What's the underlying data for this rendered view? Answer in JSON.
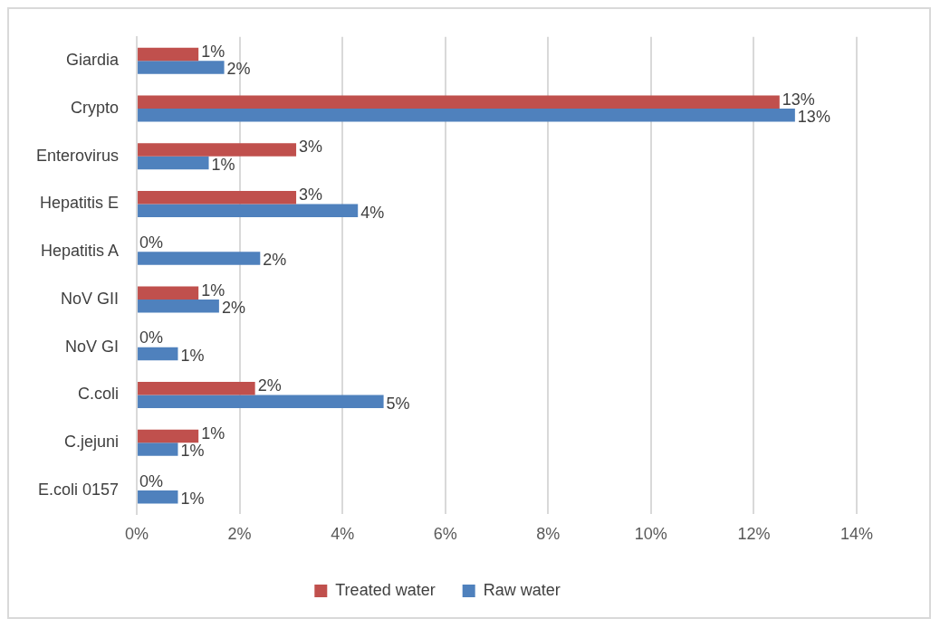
{
  "chart_data": {
    "type": "bar",
    "orientation": "horizontal",
    "categories": [
      "Giardia",
      "Crypto",
      "Enterovirus",
      "Hepatitis E",
      "Hepatitis A",
      "NoV GII",
      "NoV GI",
      "C.coli",
      "C.jejuni",
      "E.coli 0157"
    ],
    "series": [
      {
        "name": "Treated water",
        "color": "#c0504d",
        "values": [
          1.2,
          12.5,
          3.1,
          3.1,
          0,
          1.2,
          0,
          2.3,
          1.2,
          0
        ],
        "value_labels": [
          "1%",
          "13%",
          "3%",
          "3%",
          "0%",
          "1%",
          "0%",
          "2%",
          "1%",
          "0%"
        ]
      },
      {
        "name": "Raw water",
        "color": "#4f81bd",
        "values": [
          1.7,
          12.8,
          1.4,
          4.3,
          2.4,
          1.6,
          0.8,
          4.8,
          0.8,
          0.8
        ],
        "value_labels": [
          "2%",
          "13%",
          "1%",
          "4%",
          "2%",
          "2%",
          "1%",
          "5%",
          "1%",
          "1%"
        ]
      }
    ],
    "xlim": [
      0,
      14
    ],
    "xticks": [
      {
        "value": 0,
        "label": "0%"
      },
      {
        "value": 2,
        "label": "2%"
      },
      {
        "value": 4,
        "label": "4%"
      },
      {
        "value": 6,
        "label": "6%"
      },
      {
        "value": 8,
        "label": "8%"
      },
      {
        "value": 10,
        "label": "10%"
      },
      {
        "value": 12,
        "label": "12%"
      },
      {
        "value": 14,
        "label": "14%"
      }
    ],
    "grid": "x",
    "legend": "bottom"
  }
}
